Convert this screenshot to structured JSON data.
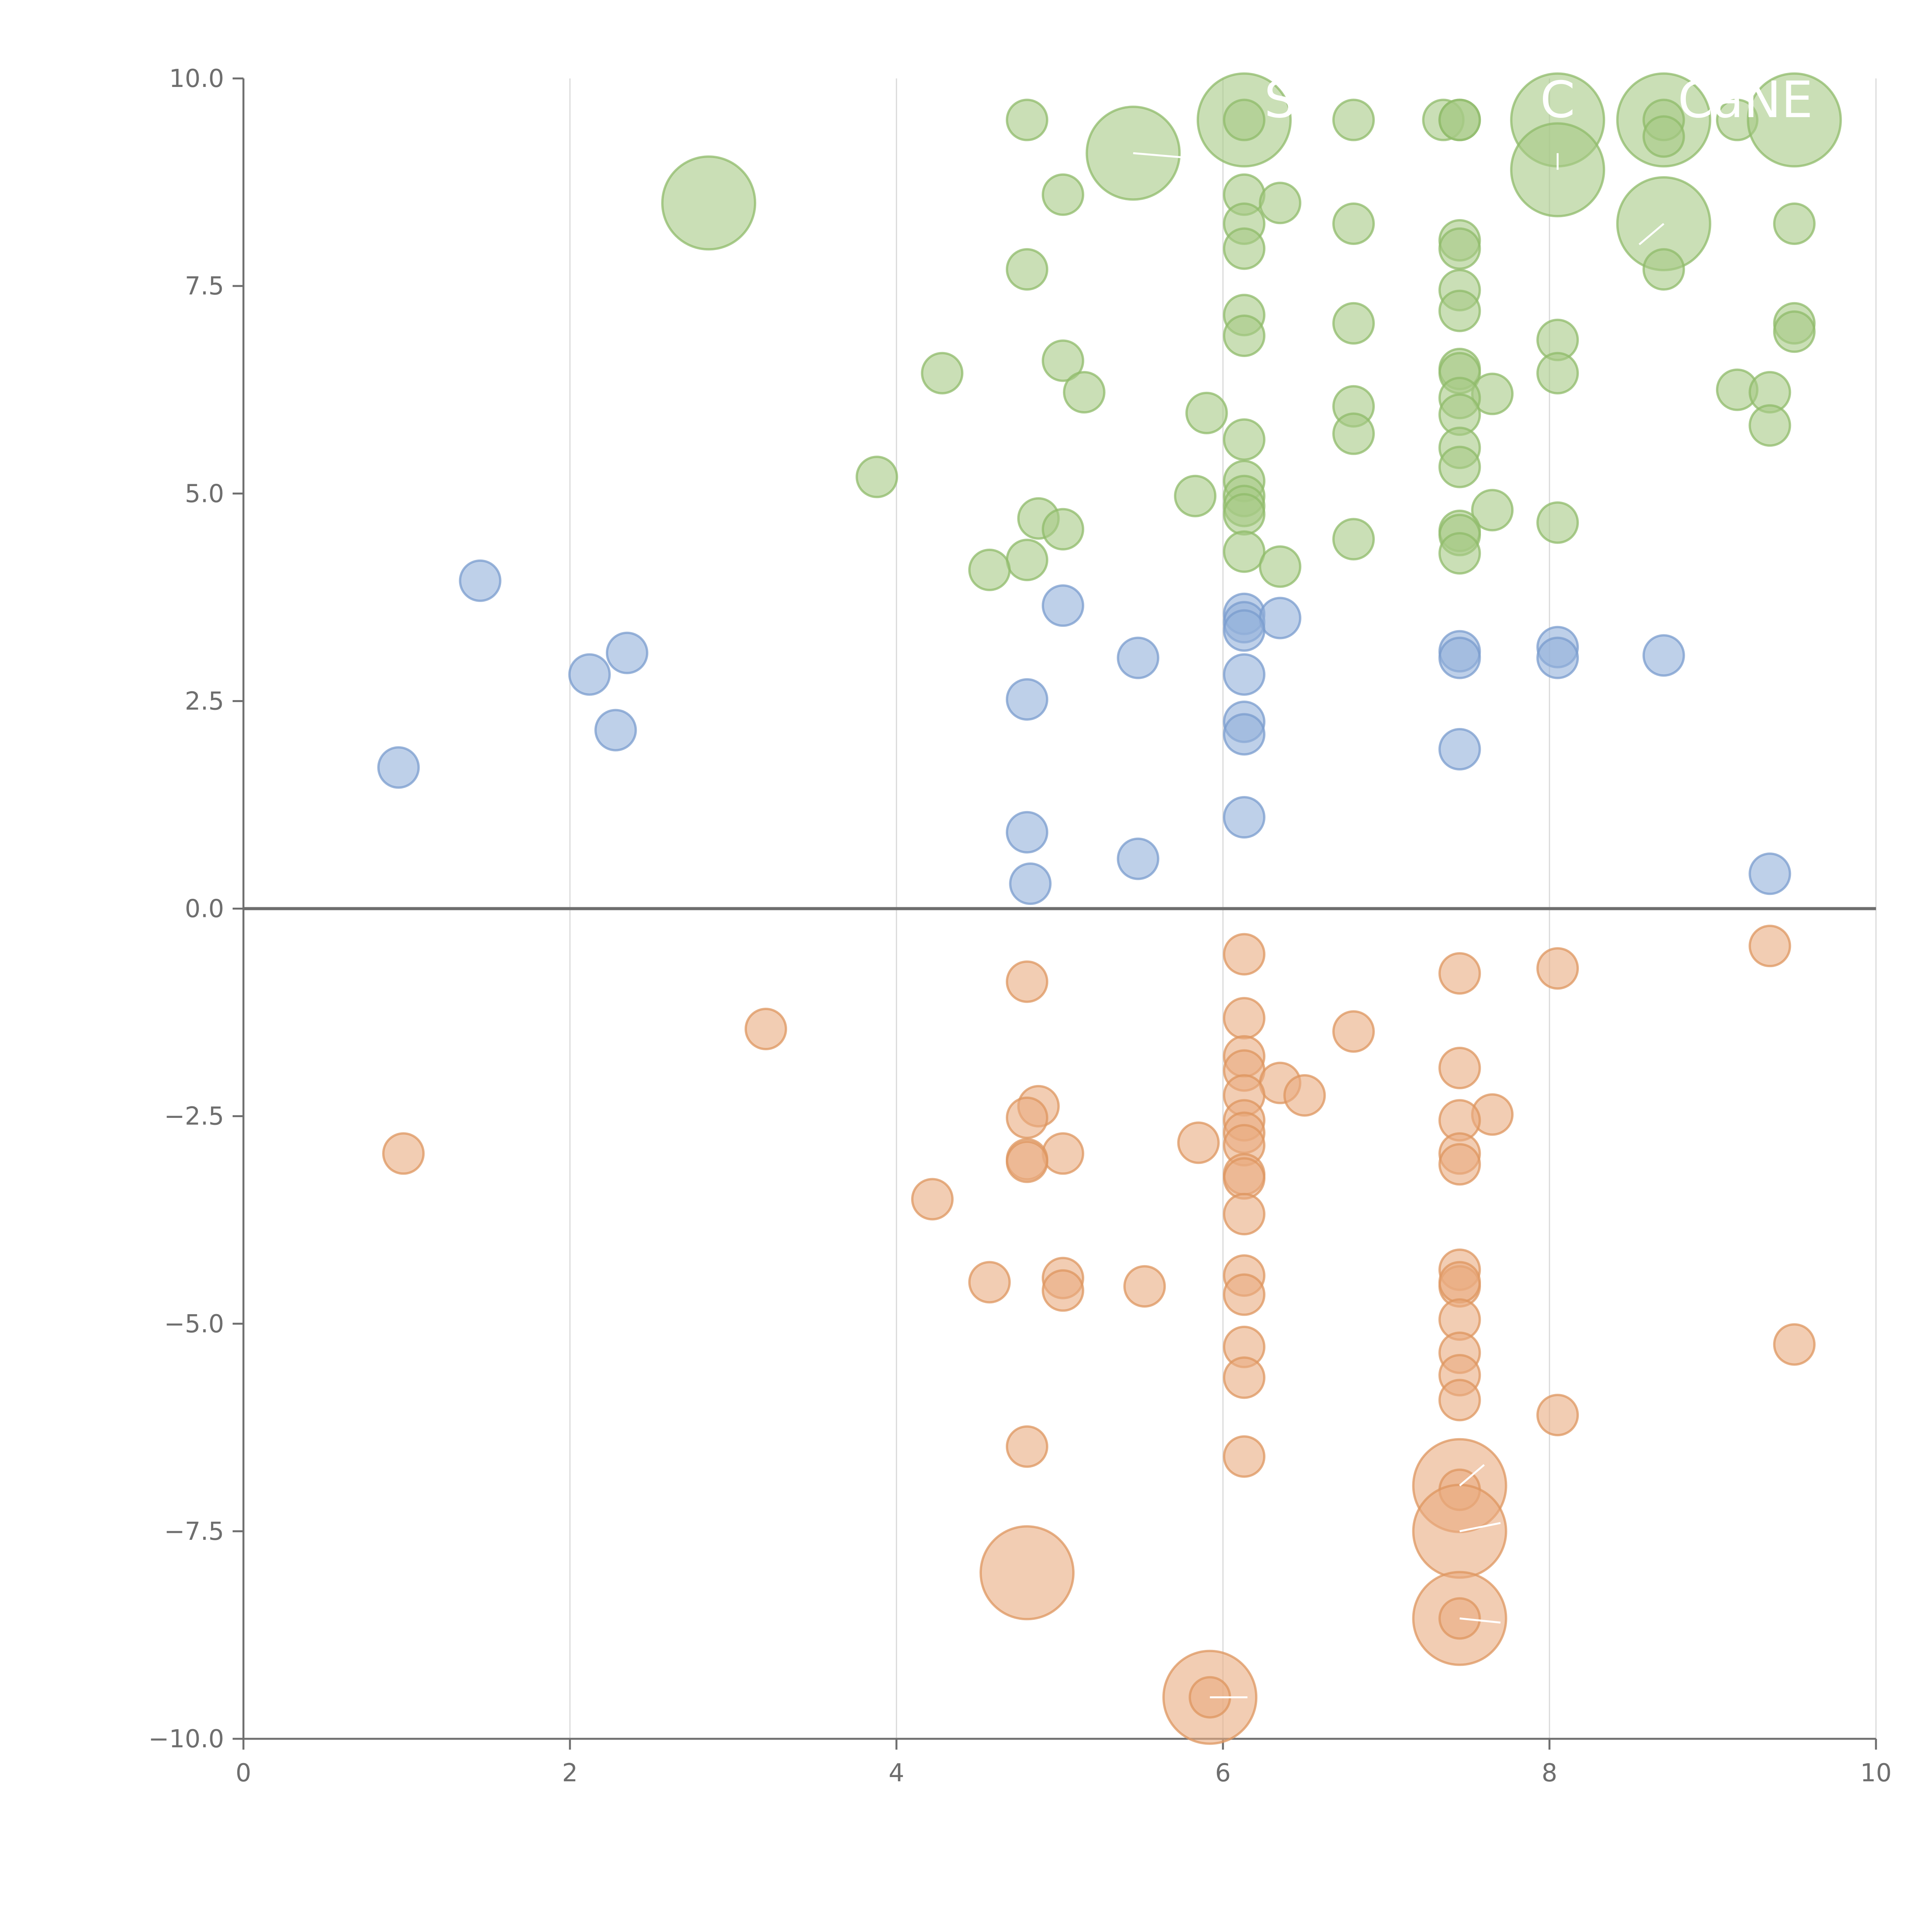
{
  "chart_data": {
    "type": "scatter",
    "title": "",
    "xlabel": "",
    "ylabel": "",
    "xlim": [
      0,
      10
    ],
    "ylim": [
      -10,
      10
    ],
    "x_ticks": [
      0,
      2,
      4,
      6,
      8,
      10
    ],
    "x_tick_labels": [
      "0",
      "2",
      "4",
      "6",
      "8",
      "10"
    ],
    "y_ticks": [
      10,
      7.5,
      5,
      2.5,
      0,
      -2.5,
      -5,
      -7.5,
      -10
    ],
    "y_tick_labels": [
      "10.0",
      "7.5",
      "5.0",
      "2.5",
      "0.0",
      "−2.5",
      "−5.0",
      "−7.5",
      "−10.0"
    ],
    "grid": "vertical",
    "zero_line": true,
    "series": [
      {
        "name": "green",
        "color": "#a6ca86",
        "edge": "#8fbb6a",
        "points": [
          [
            4.8,
            9.5,
            1
          ],
          [
            5.45,
            9.1,
            3
          ],
          [
            6.13,
            9.5,
            3
          ],
          [
            6.13,
            9.5,
            1
          ],
          [
            6.8,
            9.5,
            1
          ],
          [
            7.35,
            9.5,
            1
          ],
          [
            7.45,
            9.5,
            1
          ],
          [
            7.45,
            9.5,
            1
          ],
          [
            8.05,
            9.5,
            3
          ],
          [
            8.7,
            9.5,
            3
          ],
          [
            8.7,
            9.5,
            1
          ],
          [
            8.7,
            9.3,
            1
          ],
          [
            9.15,
            9.5,
            1
          ],
          [
            9.5,
            9.5,
            3
          ],
          [
            8.05,
            8.9,
            3
          ],
          [
            2.85,
            8.5,
            3
          ],
          [
            5.02,
            8.6,
            1
          ],
          [
            6.13,
            8.6,
            1
          ],
          [
            6.35,
            8.5,
            1
          ],
          [
            6.13,
            8.25,
            1
          ],
          [
            6.8,
            8.25,
            1
          ],
          [
            7.45,
            8.05,
            1
          ],
          [
            7.45,
            7.95,
            1
          ],
          [
            6.13,
            7.95,
            1
          ],
          [
            8.7,
            8.25,
            3
          ],
          [
            9.5,
            8.25,
            1
          ],
          [
            4.8,
            7.7,
            1
          ],
          [
            8.7,
            7.7,
            1
          ],
          [
            7.45,
            7.45,
            1
          ],
          [
            7.45,
            7.2,
            1
          ],
          [
            6.13,
            7.15,
            1
          ],
          [
            6.8,
            7.05,
            1
          ],
          [
            9.5,
            7.05,
            1
          ],
          [
            9.5,
            6.95,
            1
          ],
          [
            6.13,
            6.9,
            1
          ],
          [
            8.05,
            6.85,
            1
          ],
          [
            4.28,
            6.45,
            1
          ],
          [
            5.02,
            6.6,
            1
          ],
          [
            5.15,
            6.22,
            1
          ],
          [
            7.45,
            6.5,
            1
          ],
          [
            7.45,
            6.45,
            1
          ],
          [
            8.05,
            6.45,
            1
          ],
          [
            9.15,
            6.25,
            1
          ],
          [
            9.35,
            6.22,
            1
          ],
          [
            7.65,
            6.2,
            1
          ],
          [
            7.45,
            6.15,
            1
          ],
          [
            6.8,
            6.05,
            1
          ],
          [
            5.9,
            5.97,
            1
          ],
          [
            7.45,
            5.95,
            1
          ],
          [
            9.35,
            5.82,
            1
          ],
          [
            6.8,
            5.72,
            1
          ],
          [
            6.13,
            5.65,
            1
          ],
          [
            7.45,
            5.55,
            1
          ],
          [
            7.45,
            5.32,
            1
          ],
          [
            3.88,
            5.2,
            1
          ],
          [
            6.13,
            5.15,
            1
          ],
          [
            6.13,
            4.97,
            1
          ],
          [
            5.83,
            4.97,
            1
          ],
          [
            6.13,
            4.85,
            1
          ],
          [
            7.65,
            4.8,
            1
          ],
          [
            6.13,
            4.75,
            1
          ],
          [
            4.87,
            4.7,
            1
          ],
          [
            8.05,
            4.65,
            1
          ],
          [
            5.02,
            4.57,
            1
          ],
          [
            7.45,
            4.55,
            1
          ],
          [
            7.45,
            4.5,
            1
          ],
          [
            6.8,
            4.45,
            1
          ],
          [
            6.13,
            4.3,
            1
          ],
          [
            7.45,
            4.28,
            1
          ],
          [
            4.8,
            4.2,
            1
          ],
          [
            6.35,
            4.12,
            1
          ],
          [
            4.57,
            4.08,
            1
          ]
        ]
      },
      {
        "name": "blue",
        "color": "#93b1da",
        "edge": "#7a9cce",
        "points": [
          [
            1.45,
            3.95,
            1
          ],
          [
            5.02,
            3.65,
            1
          ],
          [
            6.13,
            3.55,
            1
          ],
          [
            6.13,
            3.45,
            1
          ],
          [
            6.35,
            3.5,
            1
          ],
          [
            6.13,
            3.35,
            1
          ],
          [
            2.35,
            3.08,
            1
          ],
          [
            5.48,
            3.02,
            1
          ],
          [
            7.45,
            3.1,
            1
          ],
          [
            7.45,
            3.02,
            1
          ],
          [
            8.05,
            3.15,
            1
          ],
          [
            8.05,
            3.02,
            1
          ],
          [
            8.7,
            3.05,
            1
          ],
          [
            2.12,
            2.82,
            1
          ],
          [
            6.13,
            2.82,
            1
          ],
          [
            4.8,
            2.52,
            1
          ],
          [
            6.13,
            2.25,
            1
          ],
          [
            2.28,
            2.15,
            1
          ],
          [
            6.13,
            2.1,
            1
          ],
          [
            7.45,
            1.92,
            1
          ],
          [
            0.95,
            1.7,
            1
          ],
          [
            6.13,
            1.1,
            1
          ],
          [
            4.8,
            0.92,
            1
          ],
          [
            5.48,
            0.6,
            1
          ],
          [
            4.82,
            0.3,
            1
          ],
          [
            9.35,
            0.42,
            1
          ]
        ]
      },
      {
        "name": "orange",
        "color": "#eaac80",
        "edge": "#dd955f",
        "points": [
          [
            6.13,
            -0.55,
            1
          ],
          [
            9.35,
            -0.45,
            1
          ],
          [
            8.05,
            -0.72,
            1
          ],
          [
            7.45,
            -0.78,
            1
          ],
          [
            4.8,
            -0.88,
            1
          ],
          [
            6.13,
            -1.32,
            1
          ],
          [
            3.2,
            -1.45,
            1
          ],
          [
            6.8,
            -1.48,
            1
          ],
          [
            6.13,
            -1.78,
            1
          ],
          [
            7.45,
            -1.92,
            1
          ],
          [
            6.13,
            -1.95,
            1
          ],
          [
            6.35,
            -2.1,
            1
          ],
          [
            6.5,
            -2.25,
            1
          ],
          [
            6.13,
            -2.25,
            1
          ],
          [
            4.87,
            -2.38,
            1
          ],
          [
            7.65,
            -2.48,
            1
          ],
          [
            4.8,
            -2.52,
            1
          ],
          [
            6.13,
            -2.55,
            1
          ],
          [
            7.45,
            -2.55,
            1
          ],
          [
            6.13,
            -2.7,
            1
          ],
          [
            5.85,
            -2.82,
            1
          ],
          [
            6.13,
            -2.85,
            1
          ],
          [
            0.98,
            -2.95,
            1
          ],
          [
            5.02,
            -2.95,
            1
          ],
          [
            7.45,
            -2.95,
            1
          ],
          [
            4.8,
            -3.02,
            1
          ],
          [
            4.8,
            -3.05,
            1
          ],
          [
            7.45,
            -3.08,
            1
          ],
          [
            6.13,
            -3.2,
            1
          ],
          [
            6.13,
            -3.25,
            1
          ],
          [
            4.22,
            -3.5,
            1
          ],
          [
            6.13,
            -3.68,
            1
          ],
          [
            7.45,
            -4.35,
            1
          ],
          [
            6.13,
            -4.42,
            1
          ],
          [
            5.02,
            -4.45,
            1
          ],
          [
            4.57,
            -4.5,
            1
          ],
          [
            7.45,
            -4.55,
            1
          ],
          [
            7.45,
            -4.5,
            1
          ],
          [
            5.02,
            -4.6,
            1
          ],
          [
            5.52,
            -4.55,
            1
          ],
          [
            6.13,
            -4.65,
            1
          ],
          [
            7.45,
            -4.95,
            1
          ],
          [
            6.13,
            -5.28,
            1
          ],
          [
            9.5,
            -5.25,
            1
          ],
          [
            7.45,
            -5.35,
            1
          ],
          [
            6.13,
            -5.65,
            1
          ],
          [
            7.45,
            -5.62,
            1
          ],
          [
            7.45,
            -5.92,
            1
          ],
          [
            8.05,
            -6.1,
            1
          ],
          [
            4.8,
            -6.48,
            1
          ],
          [
            6.13,
            -6.6,
            1
          ],
          [
            7.45,
            -6.95,
            3
          ],
          [
            7.45,
            -7.0,
            1
          ],
          [
            7.45,
            -7.5,
            3
          ],
          [
            4.8,
            -8.0,
            3
          ],
          [
            7.45,
            -8.55,
            3
          ],
          [
            7.45,
            -8.55,
            1
          ],
          [
            5.92,
            -9.5,
            3
          ],
          [
            5.92,
            -9.5,
            1
          ]
        ]
      }
    ],
    "annotations": [
      {
        "label": "S",
        "x": 6.35,
        "y": 9.72
      },
      {
        "label": "C",
        "x": 8.05,
        "y": 9.72
      },
      {
        "label": "CaNE",
        "x": 9.2,
        "y": 9.72
      }
    ]
  }
}
